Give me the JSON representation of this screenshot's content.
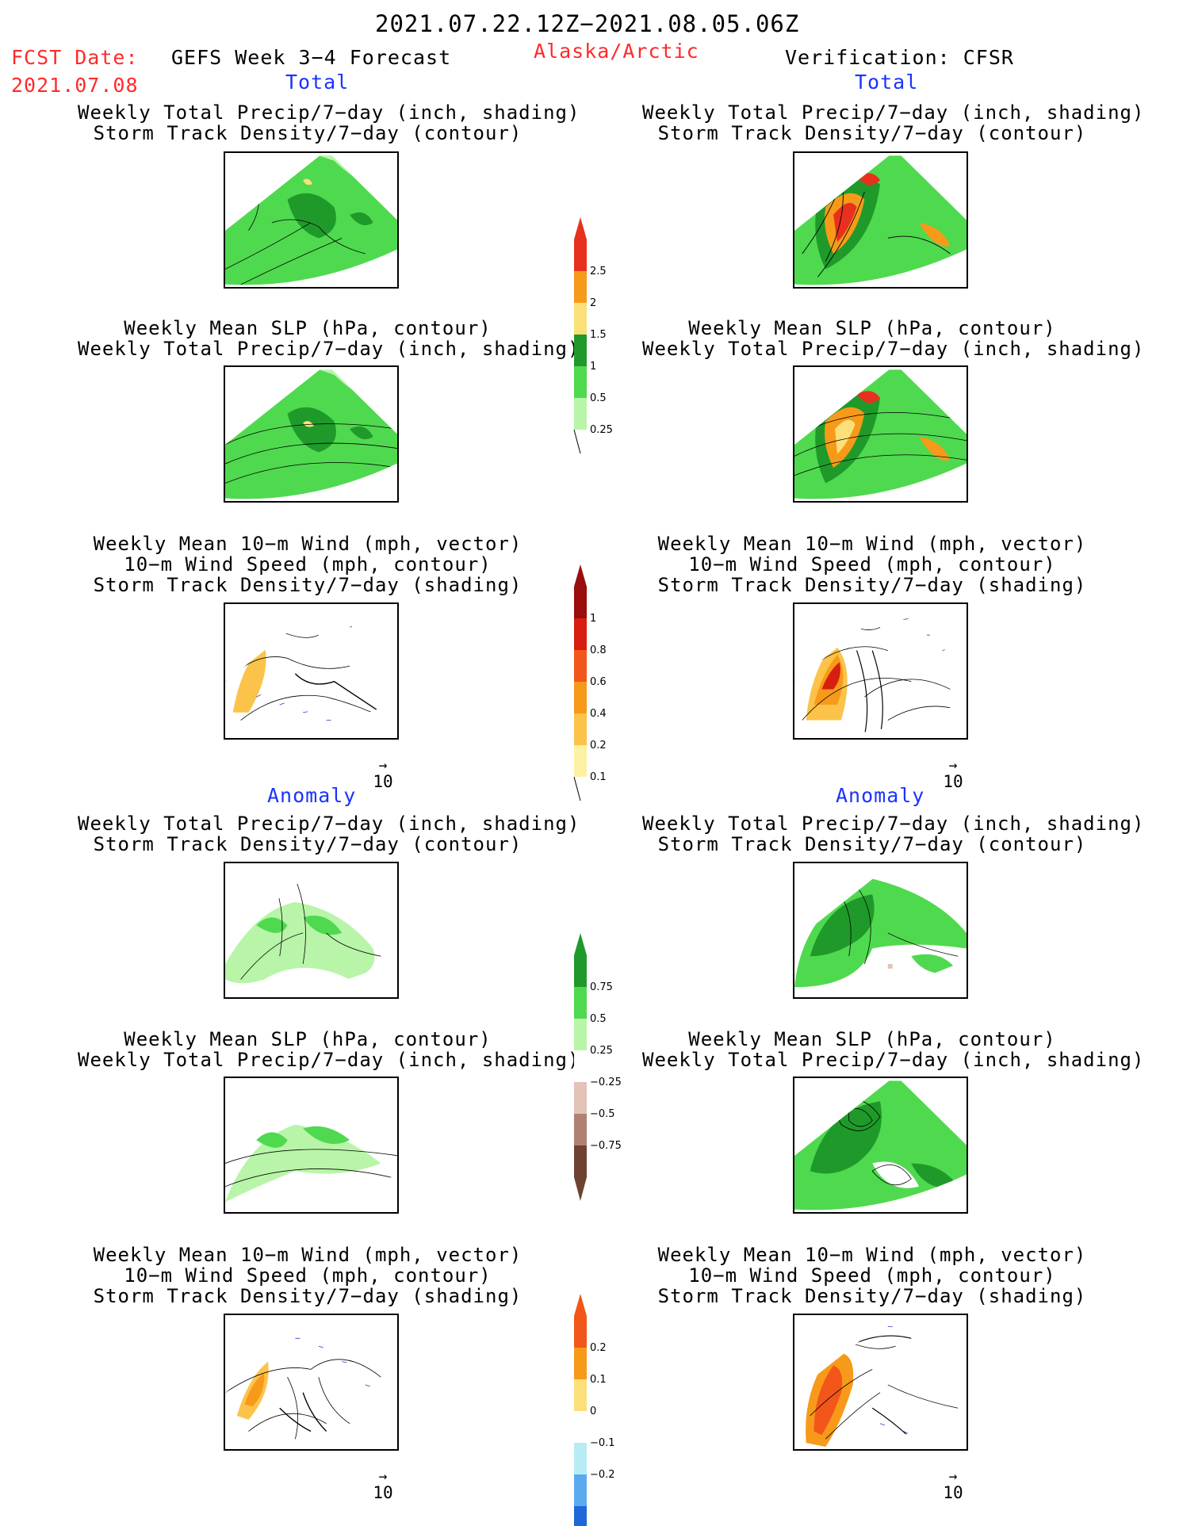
{
  "header": {
    "period": "2021.07.22.12Z−2021.08.05.06Z",
    "fcst_label": "FCST Date:",
    "fcst_date": "2021.07.08",
    "model": "GEFS  Week 3−4 Forecast",
    "region": "Alaska/Arctic",
    "verification": "Verification: CFSR"
  },
  "sections": {
    "total": "Total",
    "anomaly": "Anomaly"
  },
  "panel_titles": {
    "precip_storm": [
      "Weekly Total Precip/7−day (inch, shading)",
      "Storm Track Density/7−day (contour)"
    ],
    "slp_precip": [
      "Weekly Mean SLP (hPa, contour)",
      "Weekly Total Precip/7−day (inch, shading)"
    ],
    "wind": [
      "Weekly Mean 10−m Wind (mph, vector)",
      "10−m Wind Speed (mph, contour)",
      "Storm Track Density/7−day (shading)"
    ]
  },
  "vector_ref": "10",
  "colorbars": {
    "precip_total": {
      "labels": [
        "2.5",
        "2",
        "1.5",
        "1",
        "0.5",
        "0.25"
      ],
      "colors": [
        "#e8301e",
        "#f79a1a",
        "#fbe07a",
        "#1f9a2a",
        "#4fd94f",
        "#b8f5a8"
      ]
    },
    "storm_total": {
      "labels": [
        "1",
        "0.8",
        "0.6",
        "0.4",
        "0.2",
        "0.1"
      ],
      "colors": [
        "#9a0d0d",
        "#d81e0e",
        "#f2561a",
        "#f79a1a",
        "#fbc34a",
        "#fdf1a3"
      ]
    },
    "precip_anom": {
      "labels": [
        "0.75",
        "0.5",
        "0.25",
        "−0.25",
        "−0.5",
        "−0.75"
      ],
      "colors": [
        "#1f9a2a",
        "#4fd94f",
        "#b8f5a8",
        "#ffffff",
        "#e3c3b8",
        "#b08070",
        "#6e4230"
      ]
    },
    "storm_anom": {
      "labels": [
        "0.2",
        "0.1",
        "0",
        "−0.1",
        "−0.2"
      ],
      "colors": [
        "#f2561a",
        "#f79a1a",
        "#fbe07a",
        "#ffffff",
        "#b8ecf5",
        "#5aaaf0",
        "#1f66d8"
      ]
    }
  }
}
